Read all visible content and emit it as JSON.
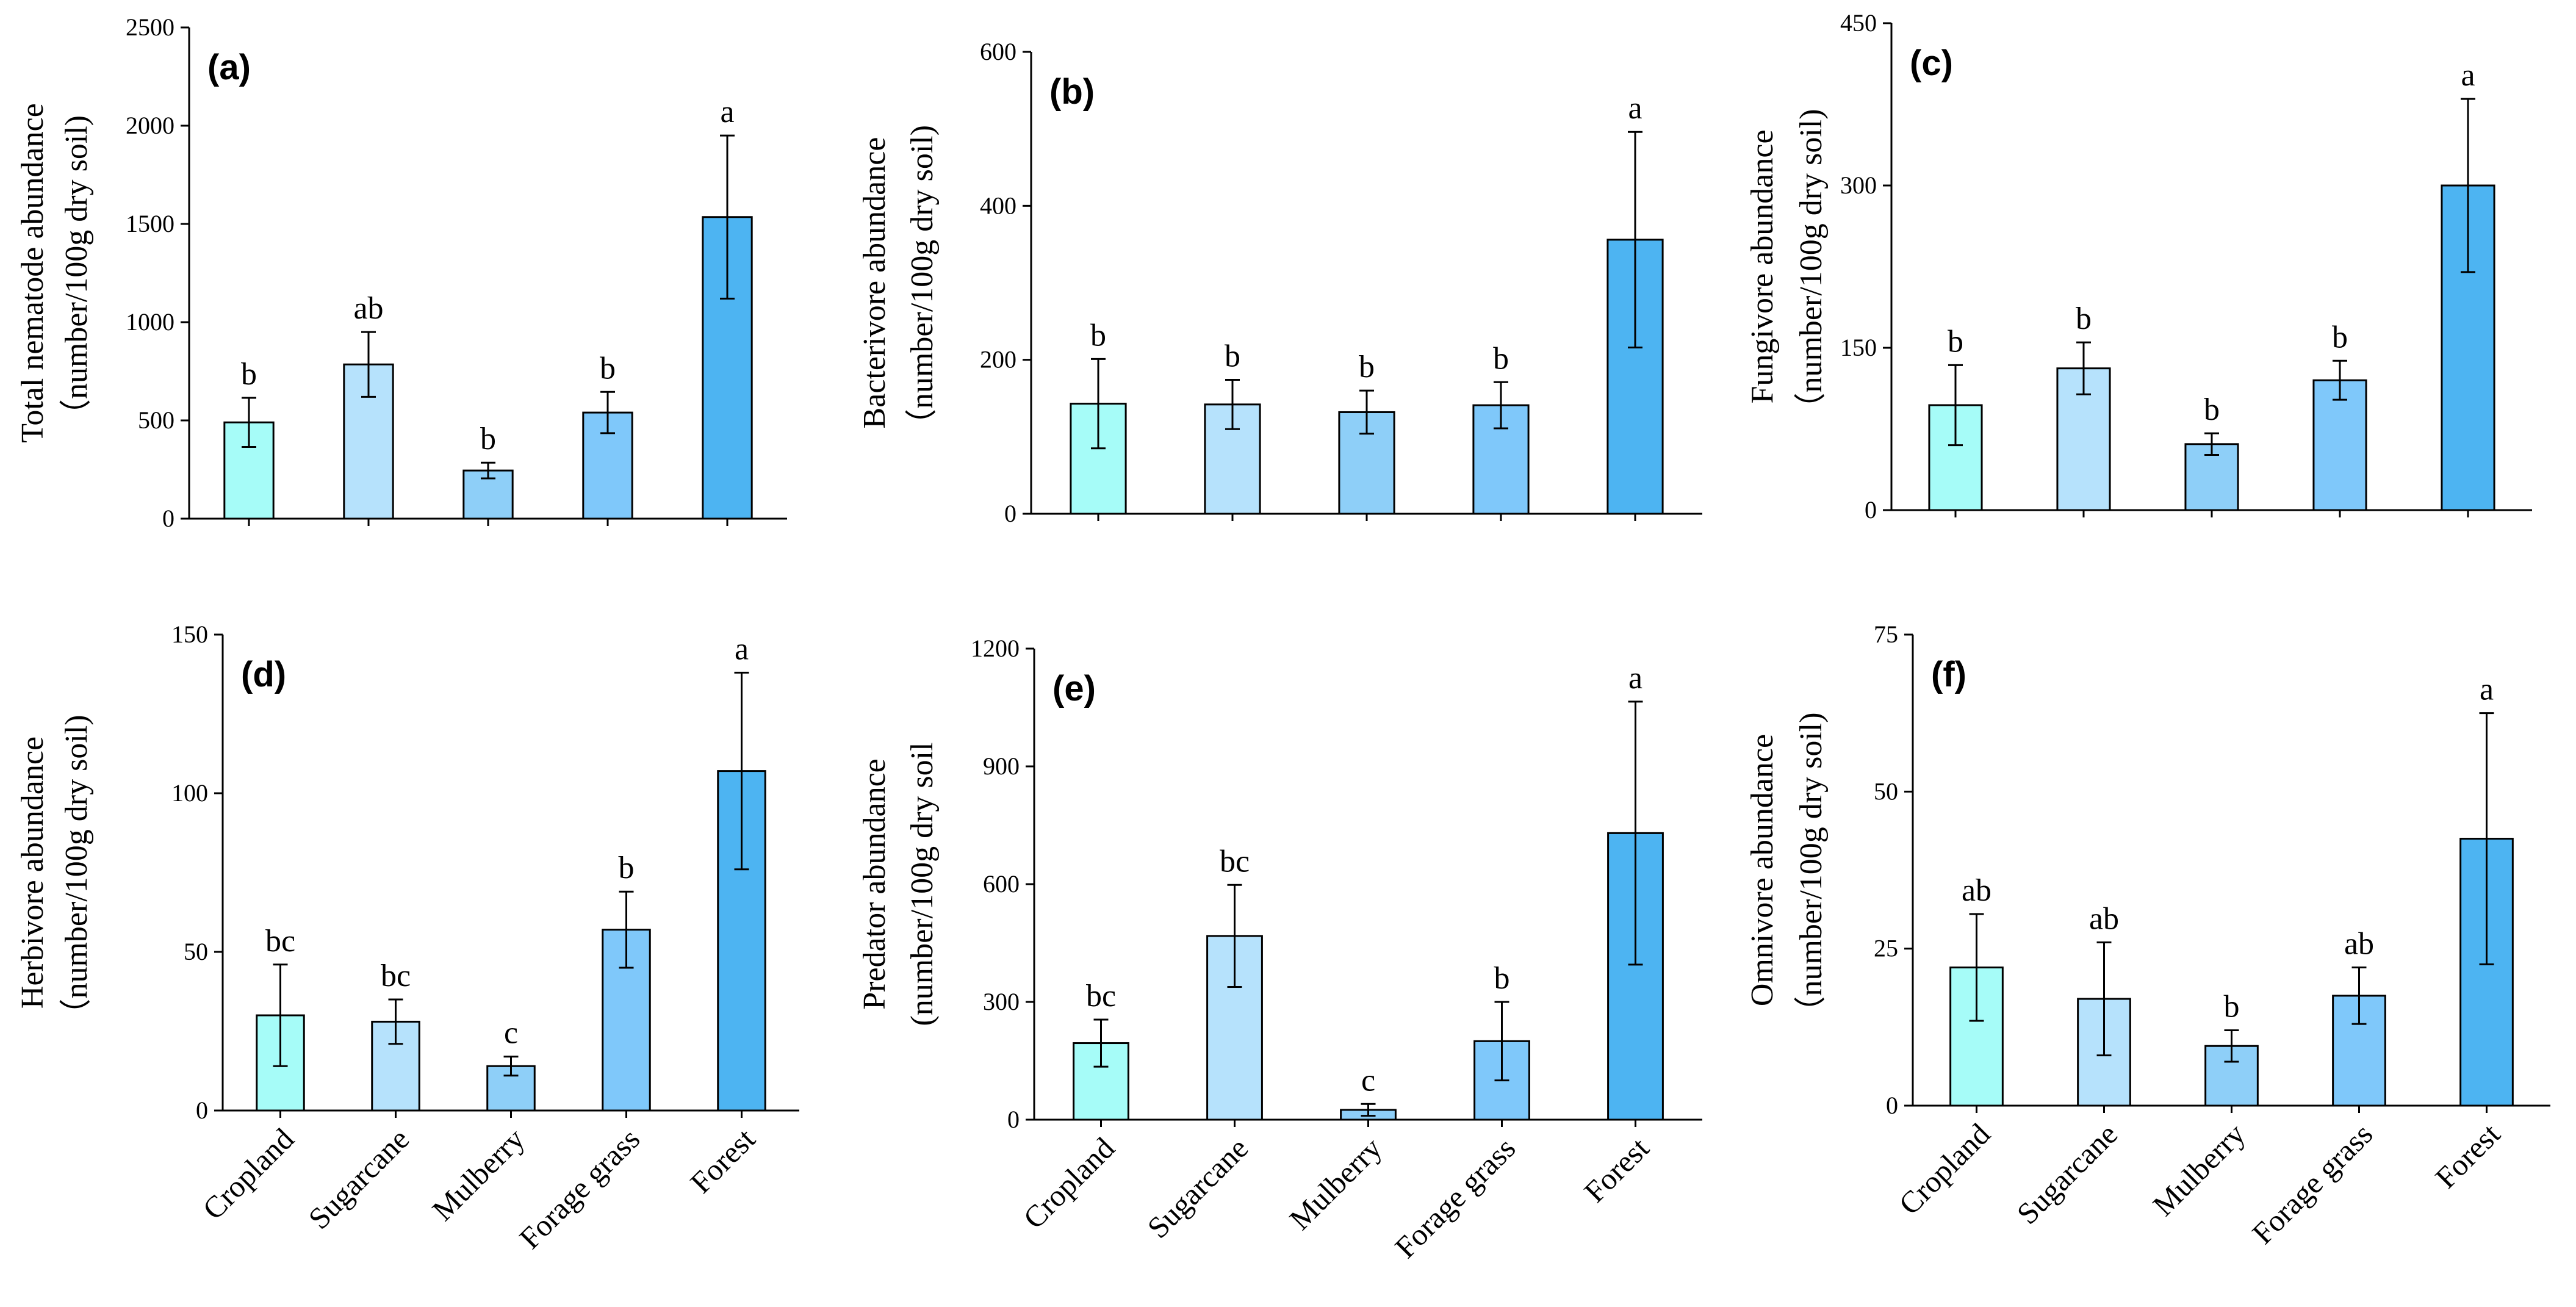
{
  "chart_data": [
    {
      "type": "bar",
      "panel": "(a)",
      "ylabel_line1": "Total nematode  abundance",
      "ylabel_line2": "（number/100g dry soil)",
      "categories": [
        "Cropland",
        "Sugarcane",
        "Mulberry",
        "Forage grass",
        "Forest"
      ],
      "values": [
        490,
        785,
        245,
        540,
        1535
      ],
      "errors": [
        125,
        165,
        40,
        105,
        415
      ],
      "sig": [
        "b",
        "ab",
        "b",
        "b",
        "a"
      ],
      "ylim": [
        0,
        2500
      ],
      "yticks": [
        "0",
        "500",
        "1000",
        "1500",
        "2000",
        "2500"
      ],
      "tickvals": [
        0,
        500,
        1000,
        1500,
        2000,
        2500
      ],
      "show_xlabels": false
    },
    {
      "type": "bar",
      "panel": "(b)",
      "ylabel_line1": "Bacterivore  abundance",
      "ylabel_line2": "（number/100g dry soil)",
      "categories": [
        "Cropland",
        "Sugarcane",
        "Mulberry",
        "Forage grass",
        "Forest"
      ],
      "values": [
        143,
        142,
        132,
        141,
        356
      ],
      "errors": [
        58,
        32,
        28,
        30,
        140
      ],
      "sig": [
        "b",
        "b",
        "b",
        "b",
        "a"
      ],
      "ylim": [
        0,
        600
      ],
      "yticks": [
        "0",
        "200",
        "400",
        "600"
      ],
      "tickvals": [
        0,
        200,
        400,
        600
      ],
      "show_xlabels": false
    },
    {
      "type": "bar",
      "panel": "(c)",
      "ylabel_line1": "Fungivore abundance",
      "ylabel_line2": "（number/100g dry soil)",
      "categories": [
        "Cropland",
        "Sugarcane",
        "Mulberry",
        "Forage grass",
        "Forest"
      ],
      "values": [
        97,
        131,
        61,
        120,
        300
      ],
      "errors": [
        37,
        24,
        10,
        18,
        80
      ],
      "sig": [
        "b",
        "b",
        "b",
        "b",
        "a"
      ],
      "ylim": [
        0,
        450
      ],
      "yticks": [
        "0",
        "150",
        "300",
        "450"
      ],
      "tickvals": [
        0,
        150,
        300,
        450
      ],
      "show_xlabels": false
    },
    {
      "type": "bar",
      "panel": "(d)",
      "ylabel_line1": "Herbivore abundance",
      "ylabel_line2": "（number/100g dry soil)",
      "categories": [
        "Cropland",
        "Sugarcane",
        "Mulberry",
        "Forage grass",
        "Forest"
      ],
      "values": [
        30,
        28,
        14,
        57,
        107
      ],
      "errors": [
        16,
        7,
        3,
        12,
        31
      ],
      "sig": [
        "bc",
        "bc",
        "c",
        "b",
        "a"
      ],
      "ylim": [
        0,
        150
      ],
      "yticks": [
        "0",
        "50",
        "100",
        "150"
      ],
      "tickvals": [
        0,
        50,
        100,
        150
      ],
      "show_xlabels": true
    },
    {
      "type": "bar",
      "panel": "(e)",
      "ylabel_line1": "Predator  abundance",
      "ylabel_line2": "(number/100g dry soil",
      "categories": [
        "Cropland",
        "Sugarcane",
        "Mulberry",
        "Forage grass",
        "Forest"
      ],
      "values": [
        195,
        468,
        25,
        200,
        730
      ],
      "errors": [
        60,
        130,
        15,
        100,
        335
      ],
      "sig": [
        "bc",
        "bc",
        "c",
        "b",
        "a"
      ],
      "ylim": [
        0,
        1200
      ],
      "yticks": [
        "0",
        "300",
        "600",
        "900",
        "1200"
      ],
      "tickvals": [
        0,
        300,
        600,
        900,
        1200
      ],
      "show_xlabels": true
    },
    {
      "type": "bar",
      "panel": "(f)",
      "ylabel_line1": "Omnivore  abundance",
      "ylabel_line2": "（number/100g dry soil)",
      "categories": [
        "Cropland",
        "Sugarcane",
        "Mulberry",
        "Forage grass",
        "Forest"
      ],
      "values": [
        22,
        17,
        9.5,
        17.5,
        42.5
      ],
      "errors": [
        8.5,
        9,
        2.5,
        4.5,
        20
      ],
      "sig": [
        "ab",
        "ab",
        "b",
        "ab",
        "a"
      ],
      "ylim": [
        0,
        75
      ],
      "yticks": [
        "0",
        "25",
        "50",
        "75"
      ],
      "tickvals": [
        0,
        25,
        50,
        75
      ],
      "show_xlabels": true
    }
  ],
  "colors": {
    "bars": [
      "#a6fcf8",
      "#b6e2fc",
      "#8ecff8",
      "#7fc8fa",
      "#4db4f2"
    ]
  }
}
